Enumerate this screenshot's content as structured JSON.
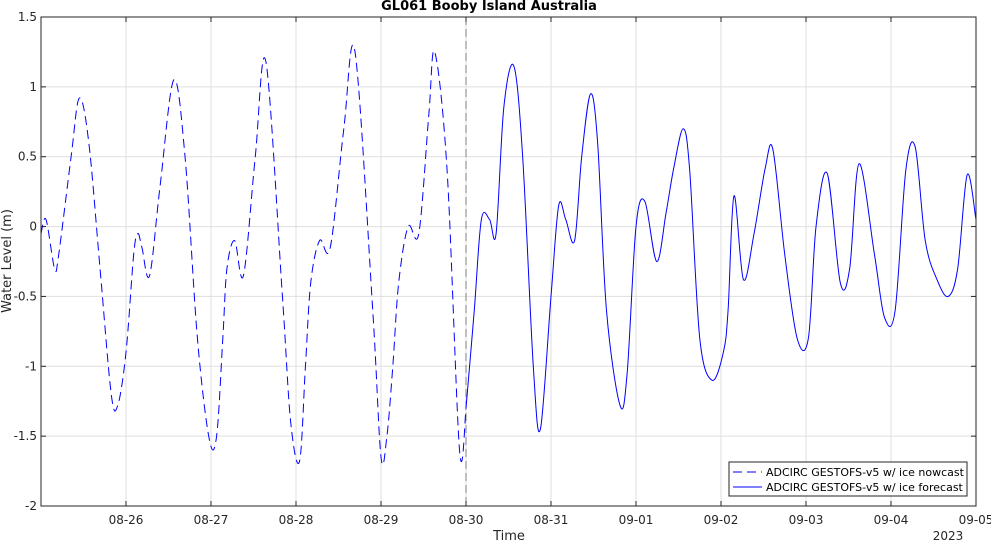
{
  "chart_data": {
    "type": "line",
    "title": "GL061 Booby Island Australia",
    "xlabel": "Time",
    "ylabel": "Water Level (m)",
    "year_label": "2023",
    "xlim": [
      "08-25 00:00",
      "09-05 00:00"
    ],
    "ylim": [
      -2,
      1.5
    ],
    "grid": true,
    "legend_position": "bottom-right",
    "x_ticks": [
      "08-26",
      "08-27",
      "08-28",
      "08-29",
      "08-30",
      "08-31",
      "09-01",
      "09-02",
      "09-03",
      "09-04",
      "09-05"
    ],
    "y_ticks": [
      "-2",
      "-1.5",
      "-1",
      "-0.5",
      "0",
      "0.5",
      "1",
      "1.5"
    ],
    "nowcast_end": "08-30 00:00",
    "series": [
      {
        "name": "ADCIRC GESTOFS-v5 w/ ice nowcast",
        "style": "dashed",
        "color": "#0000ff",
        "x": [
          "08-25 00:00",
          "08-25 01:25",
          "08-25 03:50",
          "08-25 05:00",
          "08-25 08:30",
          "08-25 10:50",
          "08-25 13:30",
          "08-25 16:40",
          "08-25 19:50",
          "08-25 21:40",
          "08-26 00:00",
          "08-26 02:10",
          "08-26 03:20",
          "08-26 04:30",
          "08-26 06:40",
          "08-26 09:40",
          "08-26 13:30",
          "08-26 16:40",
          "08-26 20:10",
          "08-26 23:30",
          "08-27 01:35",
          "08-27 03:20",
          "08-27 04:30",
          "08-27 06:40",
          "08-27 09:10",
          "08-27 12:30",
          "08-27 15:30",
          "08-27 20:10",
          "08-27 22:30",
          "08-28 01:00",
          "08-28 02:40",
          "08-28 04:10",
          "08-28 06:40",
          "08-28 09:40",
          "08-28 13:30",
          "08-28 16:40",
          "08-28 21:40",
          "08-29 00:00",
          "08-29 01:40",
          "08-29 03:20",
          "08-29 05:00",
          "08-29 07:40",
          "08-29 10:40",
          "08-29 13:30",
          "08-29 15:10",
          "08-29 18:40",
          "08-29 22:10",
          "08-30 00:00"
        ],
        "y": [
          -0.05,
          0.05,
          -0.3,
          -0.2,
          0.5,
          0.92,
          0.6,
          -0.3,
          -1.2,
          -1.28,
          -0.9,
          -0.2,
          -0.05,
          -0.15,
          -0.35,
          0.3,
          1.05,
          0.5,
          -0.8,
          -1.52,
          -1.5,
          -0.8,
          -0.3,
          -0.1,
          -0.35,
          0.5,
          1.18,
          -0.5,
          -1.4,
          -1.68,
          -1.0,
          -0.4,
          -0.1,
          -0.15,
          0.7,
          1.25,
          -0.6,
          -1.65,
          -1.5,
          -1.0,
          -0.4,
          0.0,
          -0.05,
          0.8,
          1.25,
          0.4,
          -1.6,
          -1.3
        ]
      },
      {
        "name": "ADCIRC GESTOFS-v5 w/ ice forecast",
        "style": "solid",
        "color": "#0000ff",
        "x": [
          "08-30 00:00",
          "08-30 02:20",
          "08-30 04:20",
          "08-30 06:40",
          "08-30 08:30",
          "08-30 10:40",
          "08-30 13:30",
          "08-30 16:00",
          "08-30 19:00",
          "08-30 21:00",
          "08-31 00:00",
          "08-31 02:10",
          "08-31 04:10",
          "08-31 06:40",
          "08-31 08:40",
          "08-31 11:10",
          "08-31 13:10",
          "08-31 15:40",
          "08-31 19:30",
          "08-31 21:30",
          "09-01 00:00",
          "09-01 02:30",
          "09-01 05:50",
          "09-01 08:30",
          "09-01 10:40",
          "09-01 13:20",
          "09-01 15:10",
          "09-01 18:00",
          "09-01 21:30",
          "09-02 00:40",
          "09-02 02:00",
          "09-02 03:40",
          "09-02 06:20",
          "09-02 09:20",
          "09-02 12:30",
          "09-02 14:40",
          "09-02 18:00",
          "09-02 21:30",
          "09-03 00:40",
          "09-03 02:50",
          "09-03 06:00",
          "09-03 09:40",
          "09-03 12:20",
          "09-03 15:00",
          "09-03 19:20",
          "09-03 22:10",
          "09-04 01:10",
          "09-04 04:10",
          "09-04 06:50",
          "09-04 09:40",
          "09-04 13:00",
          "09-04 16:10",
          "09-04 18:50",
          "09-04 21:30",
          "09-05 00:00"
        ],
        "y": [
          -1.3,
          -0.6,
          0.05,
          0.05,
          -0.05,
          0.85,
          1.15,
          0.5,
          -1.0,
          -1.45,
          -0.5,
          0.15,
          0.05,
          -0.1,
          0.5,
          0.95,
          0.6,
          -0.6,
          -1.28,
          -1.05,
          0.0,
          0.18,
          -0.25,
          0.1,
          0.42,
          0.7,
          0.4,
          -0.8,
          -1.1,
          -0.9,
          -0.6,
          0.22,
          -0.38,
          -0.05,
          0.42,
          0.55,
          -0.2,
          -0.8,
          -0.8,
          0.0,
          0.38,
          -0.4,
          -0.3,
          0.45,
          -0.2,
          -0.65,
          -0.6,
          0.4,
          0.57,
          -0.1,
          -0.38,
          -0.5,
          -0.3,
          0.37,
          0.05
        ]
      }
    ]
  }
}
